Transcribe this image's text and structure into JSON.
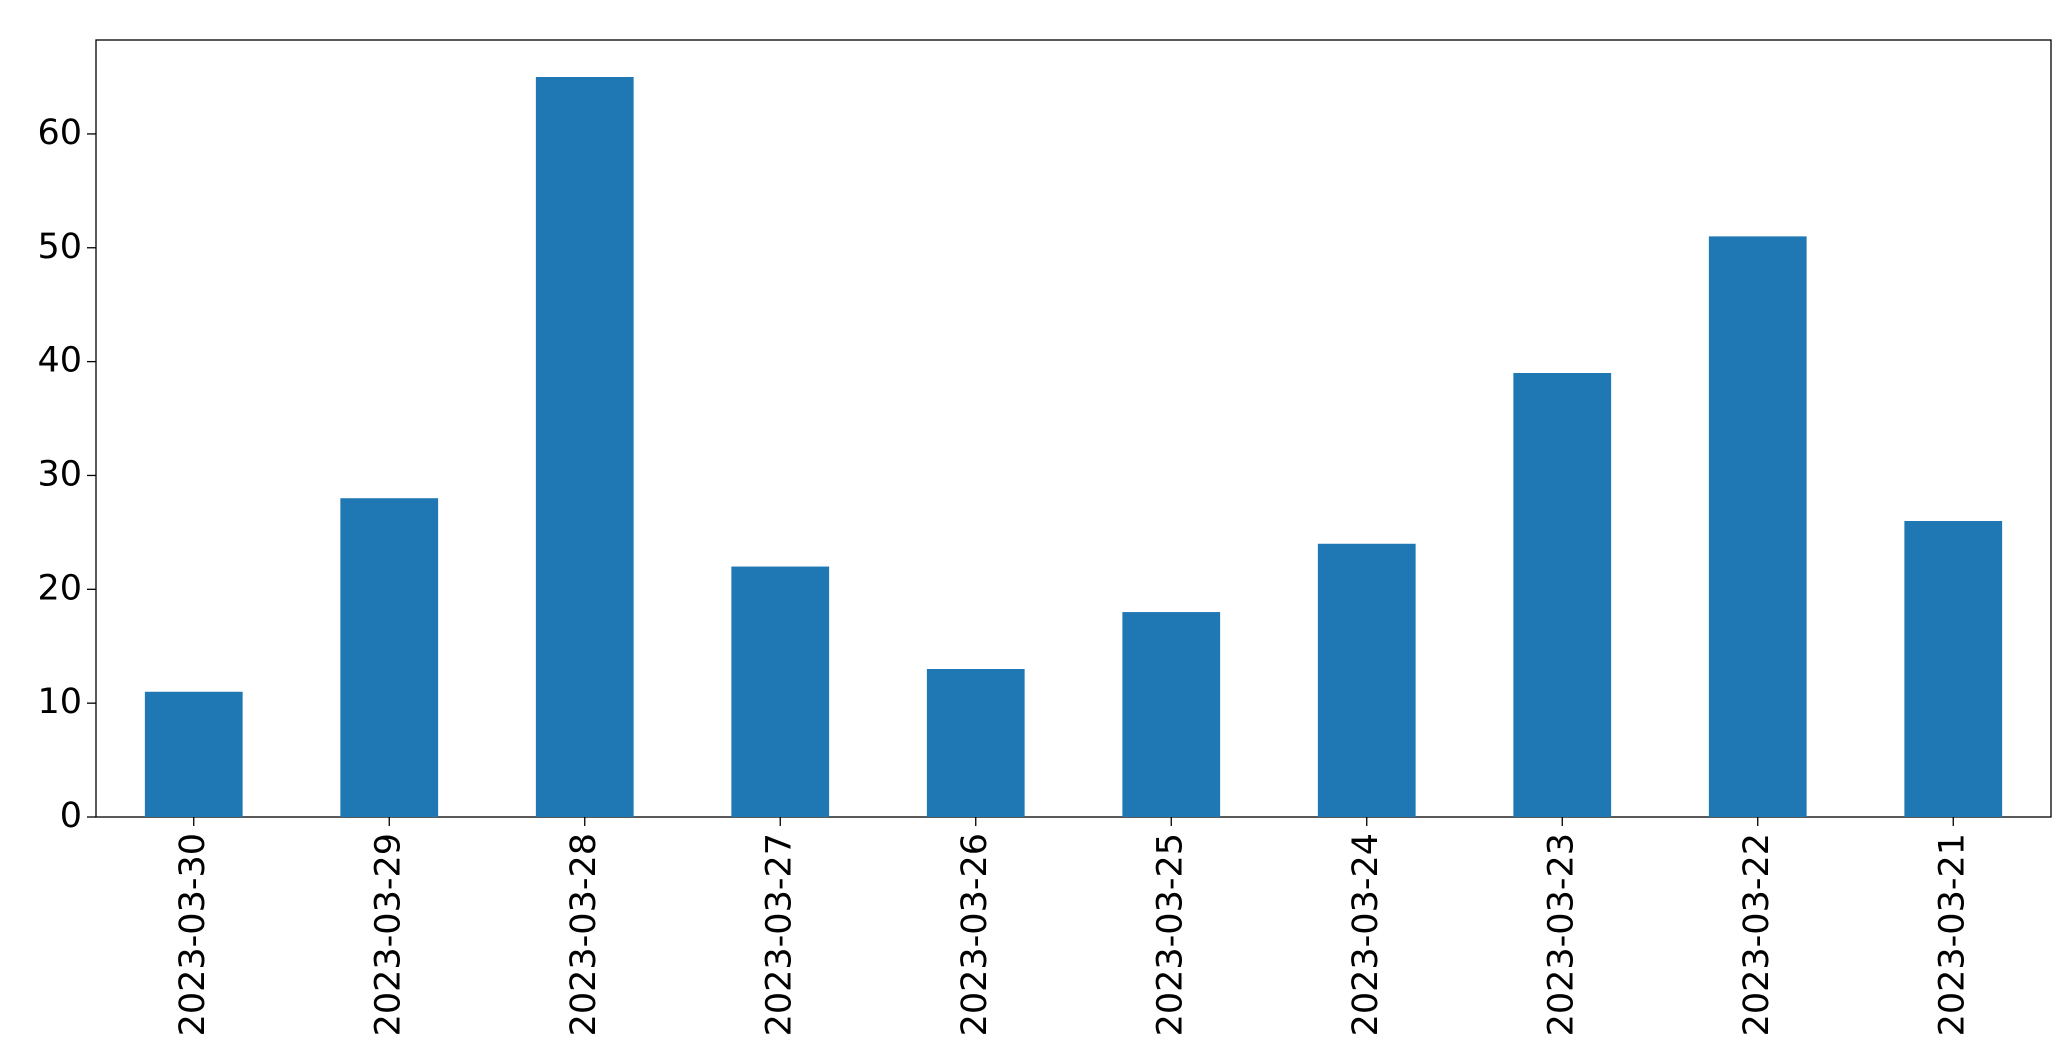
{
  "chart_data": {
    "type": "bar",
    "categories": [
      "2023-03-30",
      "2023-03-29",
      "2023-03-28",
      "2023-03-27",
      "2023-03-26",
      "2023-03-25",
      "2023-03-24",
      "2023-03-23",
      "2023-03-22",
      "2023-03-21"
    ],
    "values": [
      11,
      28,
      65,
      22,
      13,
      18,
      24,
      39,
      51,
      26
    ],
    "color": "#1f77b4",
    "ylim": [
      0,
      68.25
    ],
    "yticks": [
      0,
      10,
      20,
      30,
      40,
      50,
      60
    ],
    "grid": false
  }
}
